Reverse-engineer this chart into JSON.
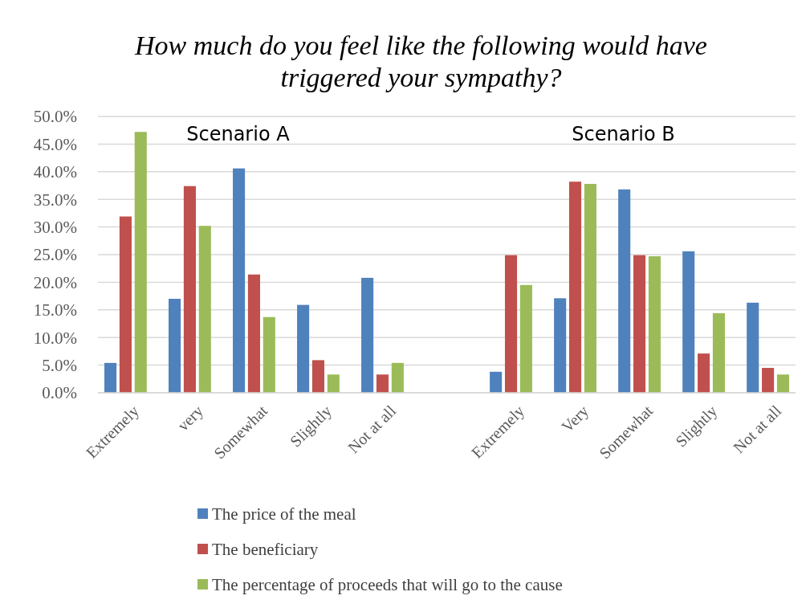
{
  "chart_data": {
    "type": "bar",
    "title": "How much do you feel like the following would have triggered your sympathy?",
    "categories": [
      "Extremely",
      "very",
      "Somewhat",
      "Slightly",
      "Not at all",
      null,
      "Extremely",
      "Very",
      "Somewhat",
      "Slightly",
      "Not at all"
    ],
    "series": [
      {
        "name": "The price of the meal",
        "color": "#4f81bd",
        "values": [
          5.4,
          17.0,
          40.6,
          15.9,
          20.8,
          null,
          3.8,
          17.1,
          36.8,
          25.6,
          16.3
        ]
      },
      {
        "name": "The beneficiary",
        "color": "#c0504d",
        "values": [
          31.9,
          37.4,
          21.4,
          5.9,
          3.3,
          null,
          24.9,
          38.2,
          24.9,
          7.1,
          4.5
        ]
      },
      {
        "name": "The percentage of proceeds that will go to the cause",
        "color": "#9bbb59",
        "values": [
          47.2,
          30.2,
          13.7,
          3.3,
          5.4,
          null,
          19.5,
          37.8,
          24.7,
          14.4,
          3.3
        ]
      }
    ],
    "ylim": [
      0,
      50
    ],
    "yticks": [
      {
        "value": 0,
        "label": "0.0%"
      },
      {
        "value": 5,
        "label": "5.0%"
      },
      {
        "value": 10,
        "label": "10.0%"
      },
      {
        "value": 15,
        "label": "15.0%"
      },
      {
        "value": 20,
        "label": "20.0%"
      },
      {
        "value": 25,
        "label": "25.0%"
      },
      {
        "value": 30,
        "label": "30.0%"
      },
      {
        "value": 35,
        "label": "35.0%"
      },
      {
        "value": 40,
        "label": "40.0%"
      },
      {
        "value": 45,
        "label": "45.0%"
      },
      {
        "value": 50,
        "label": "50.0%"
      }
    ],
    "grid": "y",
    "legend": "bottom",
    "annotations": [
      "Scenario A",
      "Scenario B"
    ]
  }
}
